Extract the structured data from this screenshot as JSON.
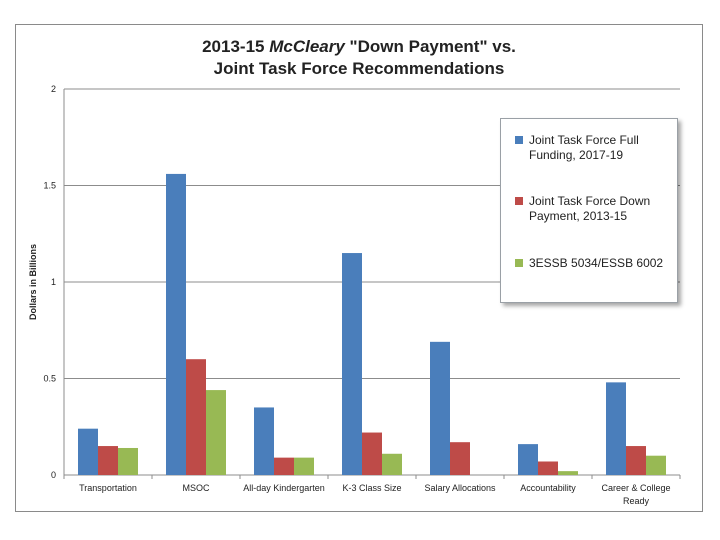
{
  "title": {
    "line1_pre": "2013-15 ",
    "line1_em": "McCleary",
    "line1_post": " \"Down Payment\" vs.",
    "line2": "Joint Task Force Recommendations"
  },
  "chart_data": {
    "type": "bar",
    "ylabel": "Dollars in Billions",
    "xlabel": "",
    "ylim": [
      0,
      2
    ],
    "yticks": [
      "0",
      "0.5",
      "1",
      "1.5",
      "2"
    ],
    "grid": true,
    "legend_position": "top-right",
    "categories": [
      "Transportation",
      "MSOC",
      "All-day Kindergarten",
      "K-3 Class Size",
      "Salary Allocations",
      "Accountability",
      "Career & College Ready"
    ],
    "series": [
      {
        "name": "Joint Task Force Full Funding, 2017-19",
        "color": "#4a7ebb",
        "values": [
          0.24,
          1.56,
          0.35,
          1.15,
          0.69,
          0.16,
          0.48
        ]
      },
      {
        "name": "Joint Task Force Down Payment, 2013-15",
        "color": "#be4b48",
        "values": [
          0.15,
          0.6,
          0.09,
          0.22,
          0.17,
          0.07,
          0.15
        ]
      },
      {
        "name": "3ESSB 5034/ESSB 6002",
        "color": "#98b954",
        "values": [
          0.14,
          0.44,
          0.09,
          0.11,
          0,
          0.02,
          0.1
        ]
      }
    ]
  }
}
